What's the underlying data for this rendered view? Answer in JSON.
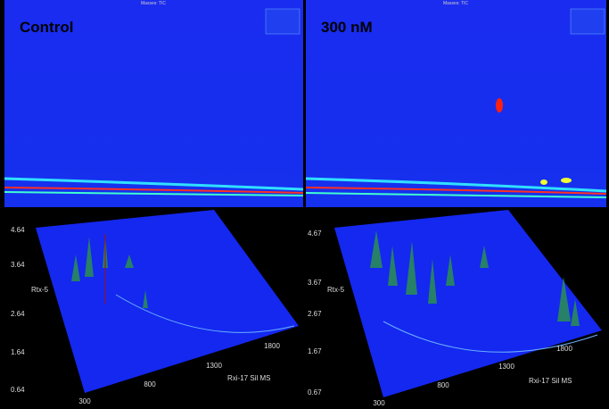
{
  "panels": [
    {
      "header": "Masses: TIC",
      "label": "Control"
    },
    {
      "header": "Masses: TIC",
      "label": "300 nM"
    }
  ],
  "surfaces": [
    {
      "y_axis": {
        "title": "Rtx-5",
        "ticks": [
          4.64,
          3.64,
          2.64,
          1.64,
          0.64
        ]
      },
      "x_axis": {
        "title": "Rxi-17 Sil MS",
        "ticks": [
          300,
          800,
          1300,
          1800
        ]
      }
    },
    {
      "y_axis": {
        "title": "Rtx-5",
        "ticks": [
          4.67,
          3.67,
          2.67,
          1.67,
          0.67
        ]
      },
      "x_axis": {
        "title": "Rxi-17 Sil MS",
        "ticks": [
          300,
          800,
          1300,
          1800
        ]
      }
    }
  ]
}
